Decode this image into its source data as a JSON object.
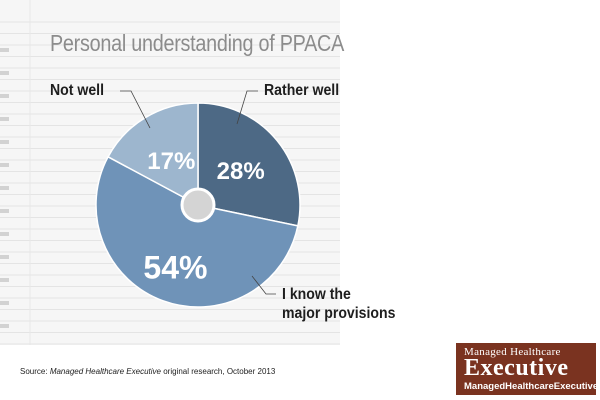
{
  "chart_data": {
    "type": "pie",
    "title": "Personal understanding of PPACA",
    "slices": [
      {
        "label": "Rather well",
        "value": 28,
        "display": "28%",
        "color": "#4d6985"
      },
      {
        "label_lines": [
          "I know the",
          "major provisions"
        ],
        "value": 54,
        "display": "54%",
        "color": "#6f93b8"
      },
      {
        "label": "Not well",
        "value": 17,
        "display": "17%",
        "color": "#9db6ce"
      }
    ],
    "center_color": "#d4d4d4"
  },
  "source": {
    "prefix": "Source:",
    "publication": "Managed Healthcare Executive",
    "suffix": "original research, October 2013"
  },
  "logo": {
    "line1": "Managed Healthcare",
    "line2": "Executive",
    "line3": "ManagedHealthcareExecutive.com",
    "color": "#7a3320"
  }
}
